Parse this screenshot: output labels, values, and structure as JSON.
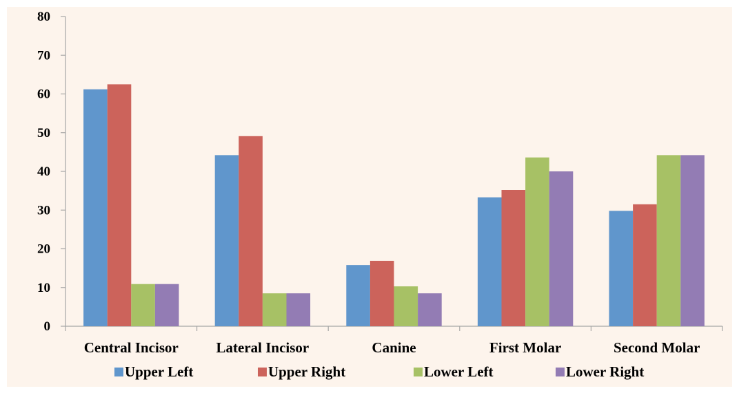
{
  "chart_data": {
    "type": "bar",
    "title": "",
    "xlabel": "",
    "ylabel": "",
    "ylim": [
      0,
      80
    ],
    "yticks": [
      0,
      10,
      20,
      30,
      40,
      50,
      60,
      70,
      80
    ],
    "grid": false,
    "legend_position": "bottom",
    "categories": [
      "Central Incisor",
      "Lateral Incisor",
      "Canine",
      "First Molar",
      "Second Molar"
    ],
    "series": [
      {
        "name": "Upper Left",
        "color": "#6096cc",
        "values": [
          61.2,
          44.2,
          15.8,
          33.3,
          29.8
        ]
      },
      {
        "name": "Upper Right",
        "color": "#cc635b",
        "values": [
          62.5,
          49.1,
          16.9,
          35.2,
          31.5
        ]
      },
      {
        "name": "Lower Left",
        "color": "#a7c165",
        "values": [
          10.9,
          8.5,
          10.3,
          43.6,
          44.2
        ]
      },
      {
        "name": "Lower Right",
        "color": "#937cb4",
        "values": [
          10.9,
          8.5,
          8.5,
          40.0,
          44.2
        ]
      }
    ]
  }
}
